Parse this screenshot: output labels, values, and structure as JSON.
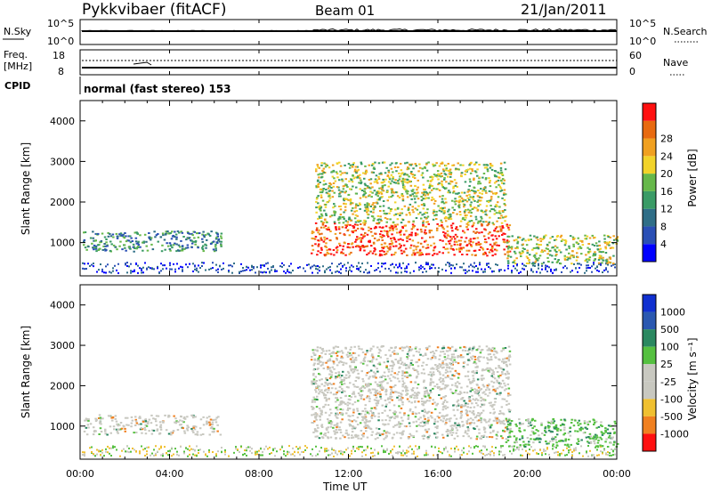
{
  "header": {
    "station": "Pykkvibaer (fitACF)",
    "beam": "Beam 01",
    "date": "21/Jan/2011"
  },
  "nsky_panel": {
    "left_label": "N.Sky",
    "left_ticks": [
      "10^5",
      "10^0"
    ],
    "right_ticks": [
      "10^5",
      "10^0"
    ],
    "right_label": "N.Search"
  },
  "freq_panel": {
    "left_label_1": "Freq.",
    "left_label_2": "[MHz]",
    "left_ticks": [
      "18",
      "8"
    ],
    "right_ticks": [
      "60",
      "0"
    ],
    "right_label": "Nave"
  },
  "cpid": {
    "label": "CPID",
    "text": "normal (fast stereo) 153"
  },
  "time_axis": {
    "label": "Time UT",
    "ticks": [
      "00:00",
      "04:00",
      "08:00",
      "12:00",
      "16:00",
      "20:00",
      "00:00"
    ]
  },
  "power_panel": {
    "ylabel": "Slant Range [km]",
    "yticks": [
      "4000",
      "3000",
      "2000",
      "1000"
    ],
    "colorbar_label": "Power [dB]"
  },
  "velocity_panel": {
    "ylabel": "Slant Range [km]",
    "yticks": [
      "4000",
      "3000",
      "2000",
      "1000"
    ],
    "colorbar_label": "Velocity [m s⁻¹]"
  },
  "chart_data": [
    {
      "type": "heatmap",
      "title": "Power",
      "xlabel": "Time UT",
      "ylabel": "Slant Range [km]",
      "xlim": [
        "00:00",
        "24:00"
      ],
      "ylim": [
        180,
        4500
      ],
      "colorbar": {
        "label": "Power [dB]",
        "ticks": [
          4,
          8,
          12,
          16,
          20,
          24,
          28
        ],
        "colors": [
          "#0000ff",
          "#2a4fb5",
          "#2f6e87",
          "#3a9b66",
          "#66b84a",
          "#f2d32a",
          "#f0a020",
          "#e86a10",
          "#ff1010"
        ]
      },
      "regions": [
        {
          "t_start": 0.1,
          "t_end": 6.3,
          "range_min": 800,
          "range_max": 1300,
          "power_db": 10
        },
        {
          "t_start": 10.3,
          "t_end": 19.2,
          "range_min": 700,
          "range_max": 1500,
          "power_db": 28
        },
        {
          "t_start": 10.5,
          "t_end": 19.0,
          "range_min": 1500,
          "range_max": 3000,
          "power_db": 18
        },
        {
          "t_start": 19.0,
          "t_end": 24.0,
          "range_min": 500,
          "range_max": 1200,
          "power_db": 16
        }
      ]
    },
    {
      "type": "heatmap",
      "title": "Velocity",
      "xlabel": "Time UT",
      "ylabel": "Slant Range [km]",
      "xlim": [
        "00:00",
        "24:00"
      ],
      "ylim": [
        180,
        4500
      ],
      "colorbar": {
        "label": "Velocity [m s⁻¹]",
        "ticks": [
          1000,
          500,
          100,
          25,
          -25,
          -100,
          -500,
          -1000
        ],
        "colors": [
          "#1030d0",
          "#2a58b0",
          "#2a8860",
          "#55c040",
          "#c8c8c0",
          "#c8c8c0",
          "#f0c030",
          "#f08020",
          "#ff1010"
        ]
      },
      "regions": [
        {
          "t_start": 0.1,
          "t_end": 6.3,
          "range_min": 800,
          "range_max": 1300,
          "velocity": 0
        },
        {
          "t_start": 10.3,
          "t_end": 19.2,
          "range_min": 700,
          "range_max": 3000,
          "velocity": 0
        },
        {
          "t_start": 19.0,
          "t_end": 24.0,
          "range_min": 500,
          "range_max": 1200,
          "velocity": 150
        }
      ]
    }
  ]
}
